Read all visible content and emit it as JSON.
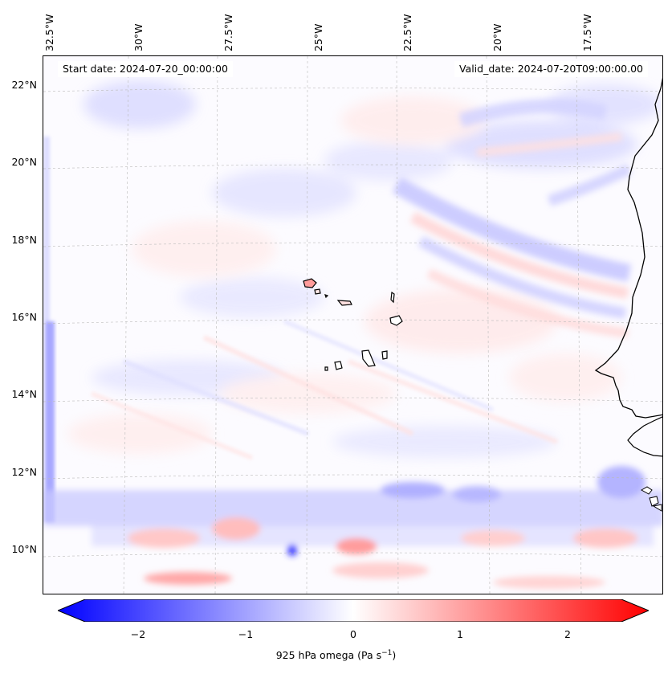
{
  "map": {
    "start_date": "Start date: 2024-07-20_00:00:00",
    "valid_date": "Valid_date: 2024-07-20T09:00:00.00",
    "lon_labels": [
      "32.5°W",
      "30°W",
      "27.5°W",
      "25°W",
      "22.5°W",
      "20°W",
      "17.5°W"
    ],
    "lat_labels": [
      "22°N",
      "20°N",
      "18°N",
      "16°N",
      "14°N",
      "12°N",
      "10°N"
    ],
    "region": "Cabo Verde / West African coast",
    "field": "925 hPa omega"
  },
  "colorbar": {
    "ticks": [
      "−2",
      "−1",
      "0",
      "1",
      "2"
    ],
    "label_main": "925 hPa omega (Pa s",
    "label_sup": "−1",
    "label_end": ")",
    "min_color": "#0000ff",
    "mid_color": "#ffffff",
    "max_color": "#ff0000",
    "vmin": -2.6,
    "vmax": 2.6
  }
}
